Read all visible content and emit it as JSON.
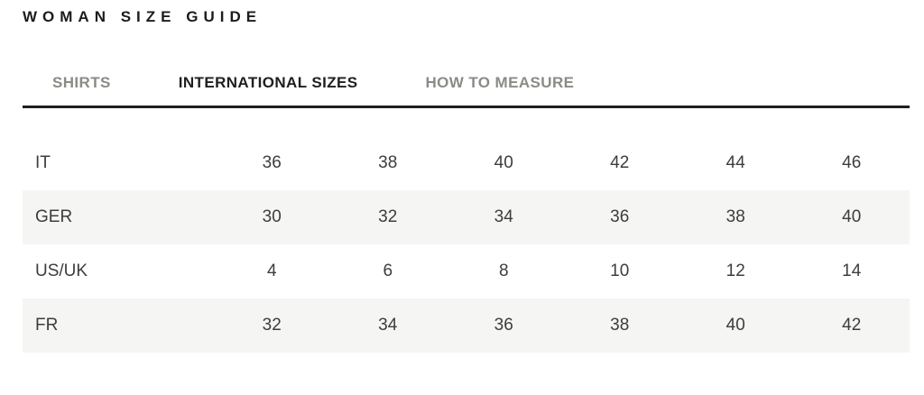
{
  "page_title": "WOMAN SIZE GUIDE",
  "tabs": [
    {
      "label": "SHIRTS",
      "active": false
    },
    {
      "label": "INTERNATIONAL SIZES",
      "active": true
    },
    {
      "label": "HOW TO MEASURE",
      "active": false
    }
  ],
  "size_table": {
    "rows": [
      {
        "label": "IT",
        "values": [
          "36",
          "38",
          "40",
          "42",
          "44",
          "46"
        ]
      },
      {
        "label": "GER",
        "values": [
          "30",
          "32",
          "34",
          "36",
          "38",
          "40"
        ]
      },
      {
        "label": "US/UK",
        "values": [
          "4",
          "6",
          "8",
          "10",
          "12",
          "14"
        ]
      },
      {
        "label": "FR",
        "values": [
          "32",
          "34",
          "36",
          "38",
          "40",
          "42"
        ]
      }
    ]
  },
  "colors": {
    "heading_text": "#1c1c1c",
    "tab_active": "#1f1f1f",
    "tab_inactive": "#8b8b86",
    "rule": "#1f1f1f",
    "table_text": "#3d3d3d",
    "row_shade": "#f5f5f4",
    "background": "#ffffff"
  }
}
